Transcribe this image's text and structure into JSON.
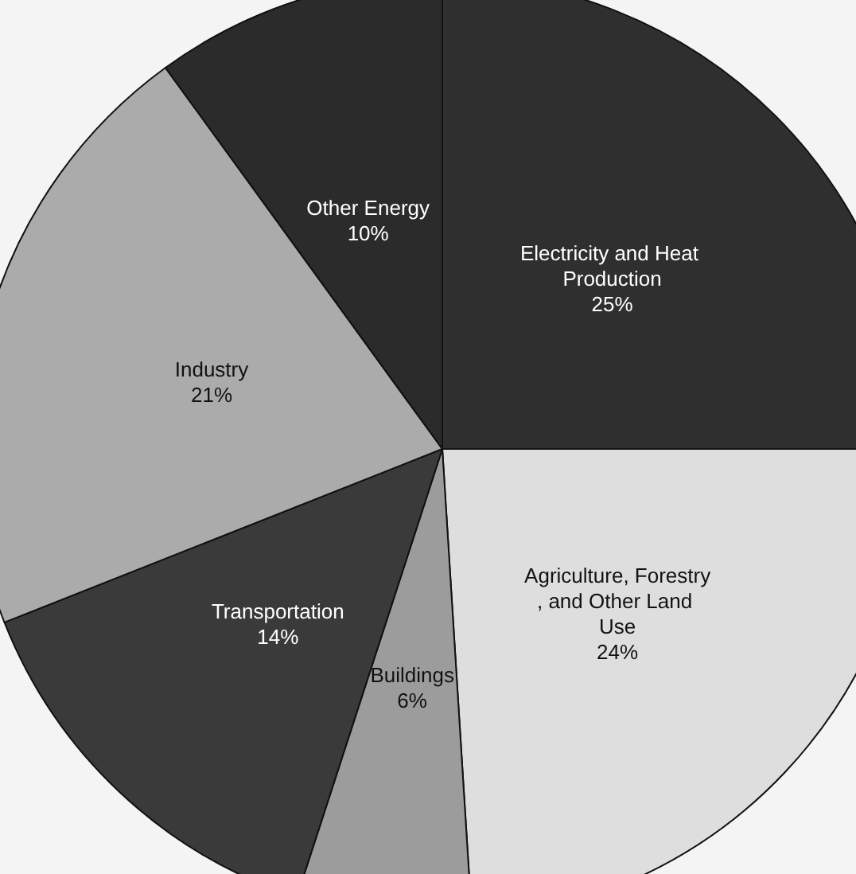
{
  "chart_data": {
    "type": "pie",
    "categories": [
      "Electricity and Heat Production",
      "Agriculture, Forestry, and Other Land Use",
      "Buildings",
      "Transportation",
      "Industry",
      "Other Energy"
    ],
    "values": [
      25,
      24,
      6,
      14,
      21,
      10
    ],
    "colors": [
      "#2f2f2f",
      "#dedede",
      "#9c9c9c",
      "#3a3a3a",
      "#ababab",
      "#2b2b2b"
    ],
    "value_labels": [
      "25%",
      "24%",
      "6%",
      "14%",
      "21%",
      "10%"
    ],
    "legend": false
  }
}
